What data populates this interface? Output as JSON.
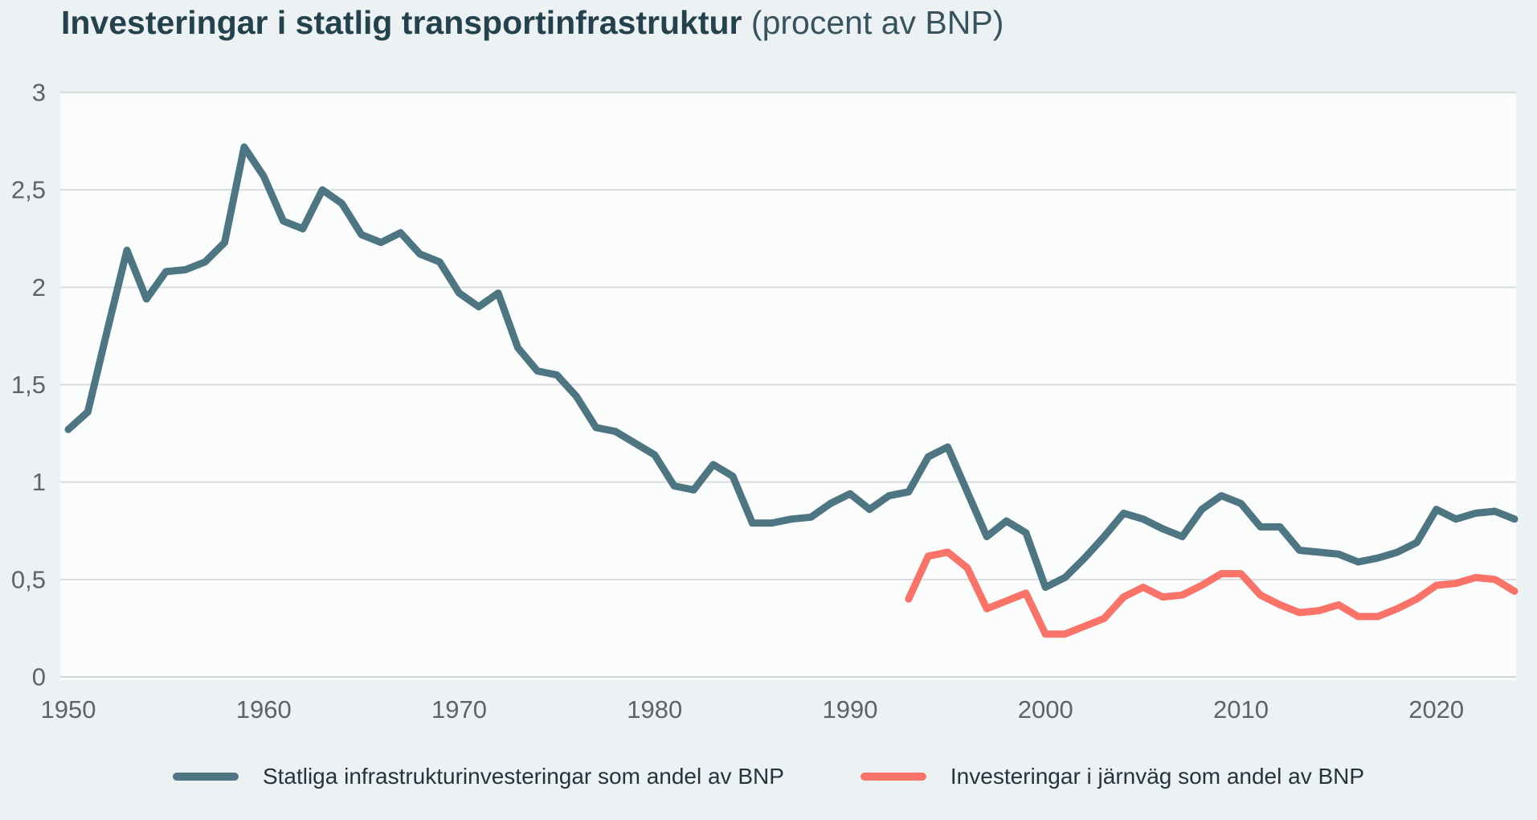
{
  "header": {
    "title": "Investeringar i statlig transportinfrastruktur",
    "subtitle": "(procent av BNP)"
  },
  "colors": {
    "background": "#ecf1f4",
    "plot_background": "#fbfdfd",
    "gridline": "#d8dbdd",
    "baseline": "#ced3d6",
    "title_text": "#24424d",
    "axis_text": "#5d6468",
    "legend_text": "#24333c",
    "series_statliga": "#4d7582",
    "series_jarnvag": "#f97368"
  },
  "chart_data": {
    "type": "line",
    "title": "Investeringar i statlig transportinfrastruktur",
    "subtitle": "(procent av BNP)",
    "xlabel": "",
    "ylabel": "",
    "xlim": [
      1950,
      2024
    ],
    "ylim": [
      0,
      3
    ],
    "grid": "horizontal",
    "legend_position": "bottom-center",
    "x_tick_values": [
      1950,
      1960,
      1970,
      1980,
      1990,
      2000,
      2010,
      2020
    ],
    "x_tick_labels": [
      "1950",
      "1960",
      "1970",
      "1980",
      "1990",
      "2000",
      "2010",
      "2020"
    ],
    "y_tick_values": [
      0,
      0.5,
      1,
      1.5,
      2,
      2.5,
      3
    ],
    "y_tick_labels": [
      "0",
      "0,5",
      "1",
      "1,5",
      "2",
      "2,5",
      "3"
    ],
    "series": [
      {
        "name": "Statliga infrastrukturinvesteringar som andel av BNP",
        "color": "#4d7582",
        "start_year": 1950,
        "values": [
          1.27,
          1.36,
          1.78,
          2.19,
          1.94,
          2.08,
          2.09,
          2.13,
          2.23,
          2.72,
          2.57,
          2.34,
          2.3,
          2.5,
          2.43,
          2.27,
          2.23,
          2.28,
          2.17,
          2.13,
          1.97,
          1.9,
          1.97,
          1.69,
          1.57,
          1.55,
          1.44,
          1.28,
          1.26,
          1.2,
          1.14,
          0.98,
          0.96,
          1.09,
          1.03,
          0.79,
          0.79,
          0.81,
          0.82,
          0.89,
          0.94,
          0.86,
          0.93,
          0.95,
          1.13,
          1.18,
          0.95,
          0.72,
          0.8,
          0.74,
          0.46,
          0.51,
          0.61,
          0.72,
          0.84,
          0.81,
          0.76,
          0.72,
          0.86,
          0.93,
          0.89,
          0.77,
          0.77,
          0.65,
          0.64,
          0.63,
          0.59,
          0.61,
          0.64,
          0.69,
          0.86,
          0.81,
          0.84,
          0.85,
          0.81
        ]
      },
      {
        "name": "Investeringar i järnväg som andel av BNP",
        "color": "#f97368",
        "start_year": 1993,
        "values": [
          0.4,
          0.62,
          0.64,
          0.56,
          0.35,
          0.39,
          0.43,
          0.22,
          0.22,
          0.26,
          0.3,
          0.41,
          0.46,
          0.41,
          0.42,
          0.47,
          0.53,
          0.53,
          0.42,
          0.37,
          0.33,
          0.34,
          0.37,
          0.31,
          0.31,
          0.35,
          0.4,
          0.47,
          0.48,
          0.51,
          0.5,
          0.44
        ]
      }
    ]
  }
}
